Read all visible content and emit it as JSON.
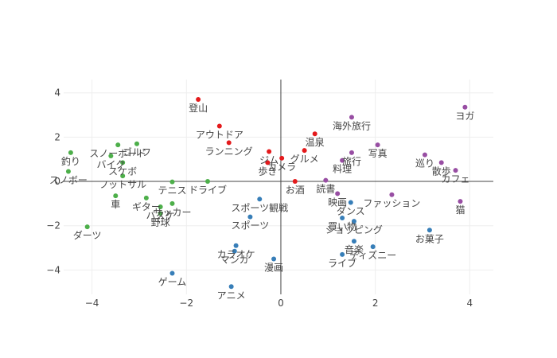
{
  "chart_data": {
    "type": "scatter",
    "title": "",
    "xlabel": "",
    "ylabel": "",
    "xlim": [
      -4.6,
      4.5
    ],
    "ylim": [
      -5.1,
      4.6
    ],
    "xticks": [
      -4,
      -2,
      0,
      2,
      4
    ],
    "yticks": [
      -4,
      -2,
      0,
      2,
      4
    ],
    "grid": true,
    "legend": "none",
    "colors": [
      "#e41a1c",
      "#4daf4a",
      "#377eb8",
      "#984ea3"
    ],
    "series": [
      {
        "color": "#e41a1c",
        "points": [
          {
            "label": "登山",
            "x": -1.75,
            "y": 3.7
          },
          {
            "label": "アウトドア",
            "x": -1.3,
            "y": 2.5
          },
          {
            "label": "ランニング",
            "x": -1.1,
            "y": 1.75
          },
          {
            "label": "温泉",
            "x": 0.72,
            "y": 2.15
          },
          {
            "label": "グルメ",
            "x": 0.5,
            "y": 1.4
          },
          {
            "label": "ジム",
            "x": -0.25,
            "y": 1.35
          },
          {
            "label": "カメラ",
            "x": 0.02,
            "y": 1.05
          },
          {
            "label": "歩き",
            "x": -0.28,
            "y": 0.85
          },
          {
            "label": "お酒",
            "x": 0.3,
            "y": 0.0
          }
        ]
      },
      {
        "color": "#4daf4a",
        "points": [
          {
            "label": "スノーボード",
            "x": -3.45,
            "y": 1.65
          },
          {
            "label": "ゴルフ",
            "x": -3.05,
            "y": 1.7
          },
          {
            "label": "バイク",
            "x": -3.6,
            "y": 1.15
          },
          {
            "label": "スケボ",
            "x": -3.35,
            "y": 0.85
          },
          {
            "label": "釣り",
            "x": -4.45,
            "y": 1.3
          },
          {
            "label": "スノボー",
            "x": -4.5,
            "y": 0.45
          },
          {
            "label": "フットサル",
            "x": -3.35,
            "y": 0.25
          },
          {
            "label": "テニス",
            "x": -2.3,
            "y": -0.02
          },
          {
            "label": "ドライブ",
            "x": -1.55,
            "y": 0.0
          },
          {
            "label": "車",
            "x": -3.5,
            "y": -0.65
          },
          {
            "label": "ギター",
            "x": -2.85,
            "y": -0.75
          },
          {
            "label": "バスケ",
            "x": -2.55,
            "y": -1.15
          },
          {
            "label": "サッカー",
            "x": -2.3,
            "y": -1.0
          },
          {
            "label": "野球",
            "x": -2.55,
            "y": -1.45
          },
          {
            "label": "ダーツ",
            "x": -4.1,
            "y": -2.05
          }
        ]
      },
      {
        "color": "#377eb8",
        "points": [
          {
            "label": "スポーツ観戦",
            "x": -0.45,
            "y": -0.8
          },
          {
            "label": "スポーツ",
            "x": -0.65,
            "y": -1.6
          },
          {
            "label": "カラオケ",
            "x": -0.95,
            "y": -2.9
          },
          {
            "label": "マンガ",
            "x": -0.98,
            "y": -3.15
          },
          {
            "label": "漫画",
            "x": -0.15,
            "y": -3.5
          },
          {
            "label": "ゲーム",
            "x": -2.3,
            "y": -4.15
          },
          {
            "label": "アニメ",
            "x": -1.05,
            "y": -4.75
          },
          {
            "label": "ダンス",
            "x": 1.48,
            "y": -0.95
          },
          {
            "label": "買い物",
            "x": 1.3,
            "y": -1.65
          },
          {
            "label": "ショッピング",
            "x": 1.55,
            "y": -1.8
          },
          {
            "label": "音楽",
            "x": 1.55,
            "y": -2.7
          },
          {
            "label": "ディズニー",
            "x": 1.95,
            "y": -2.95
          },
          {
            "label": "ライブ",
            "x": 1.3,
            "y": -3.3
          },
          {
            "label": "お菓子",
            "x": 3.15,
            "y": -2.2
          }
        ]
      },
      {
        "color": "#984ea3",
        "points": [
          {
            "label": "海外旅行",
            "x": 1.5,
            "y": 2.9
          },
          {
            "label": "ヨガ",
            "x": 3.9,
            "y": 3.35
          },
          {
            "label": "写真",
            "x": 2.05,
            "y": 1.65
          },
          {
            "label": "旅行",
            "x": 1.5,
            "y": 1.3
          },
          {
            "label": "料理",
            "x": 1.3,
            "y": 0.95
          },
          {
            "label": "巡り",
            "x": 3.05,
            "y": 1.2
          },
          {
            "label": "散歩",
            "x": 3.4,
            "y": 0.85
          },
          {
            "label": "カフェ",
            "x": 3.7,
            "y": 0.5
          },
          {
            "label": "読書",
            "x": 0.95,
            "y": 0.05
          },
          {
            "label": "映画",
            "x": 1.2,
            "y": -0.55
          },
          {
            "label": "ファッション",
            "x": 2.35,
            "y": -0.6
          },
          {
            "label": "猫",
            "x": 3.8,
            "y": -0.9
          }
        ]
      }
    ]
  }
}
